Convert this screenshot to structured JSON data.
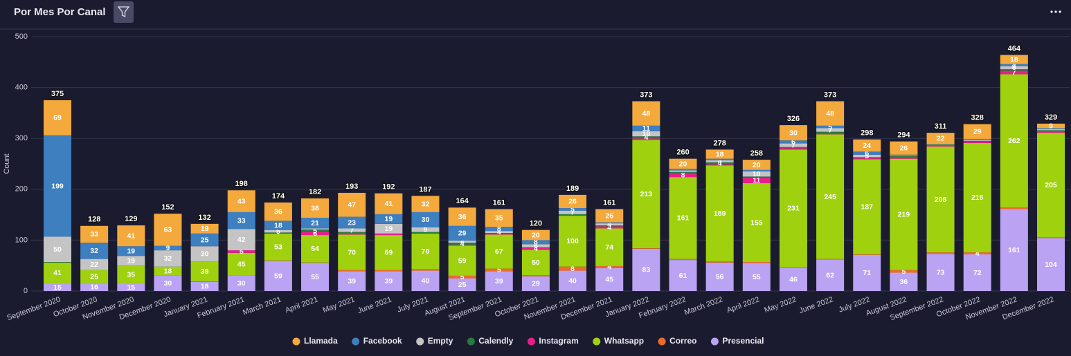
{
  "chart_data": {
    "type": "stacked_bar",
    "title": "Por Mes Por Canal",
    "y_label": "Count",
    "categories": [
      "September 2020",
      "October 2020",
      "November 2020",
      "December 2020",
      "January 2021",
      "February 2021",
      "March 2021",
      "April 2021",
      "May 2021",
      "June 2021",
      "July 2021",
      "August 2021",
      "September 2021",
      "October 2021",
      "November 2021",
      "December 2021",
      "January 2022",
      "February 2022",
      "March 2022",
      "April 2022",
      "May 2022",
      "June 2022",
      "July 2022",
      "August 2022",
      "September 2022",
      "October 2022",
      "November 2022",
      "December 2022"
    ],
    "series": [
      {
        "name": "Presencial",
        "color": "#b9a3f2",
        "values": [
          15,
          16,
          15,
          30,
          18,
          30,
          59,
          55,
          39,
          39,
          40,
          25,
          39,
          29,
          40,
          45,
          83,
          61,
          56,
          55,
          46,
          62,
          71,
          36,
          73,
          72,
          161,
          104
        ]
      },
      {
        "name": "Correo",
        "color": "#ee6a2a",
        "values": [
          0,
          0,
          0,
          0,
          1,
          0,
          1,
          1,
          2,
          2,
          3,
          5,
          5,
          2,
          8,
          4,
          1,
          2,
          2,
          2,
          1,
          1,
          1,
          5,
          3,
          4,
          3,
          2
        ]
      },
      {
        "name": "Whatsapp",
        "color": "#9fd10f",
        "values": [
          41,
          25,
          35,
          18,
          39,
          45,
          53,
          54,
          70,
          69,
          70,
          59,
          67,
          50,
          100,
          74,
          213,
          161,
          189,
          155,
          231,
          245,
          187,
          219,
          208,
          215,
          262,
          205
        ]
      },
      {
        "name": "Instagram",
        "color": "#e91e8c",
        "values": [
          0,
          0,
          0,
          0,
          0,
          5,
          0,
          6,
          3,
          3,
          1,
          2,
          2,
          4,
          1,
          4,
          3,
          8,
          2,
          11,
          3,
          2,
          2,
          3,
          3,
          3,
          7,
          3
        ]
      },
      {
        "name": "Calendly",
        "color": "#2a7a3e",
        "values": [
          1,
          0,
          0,
          0,
          0,
          0,
          2,
          5,
          2,
          0,
          2,
          4,
          1,
          1,
          2,
          2,
          4,
          2,
          4,
          2,
          2,
          3,
          2,
          2,
          1,
          1,
          3,
          2
        ]
      },
      {
        "name": "Empty",
        "color": "#c4c4c4",
        "values": [
          50,
          22,
          19,
          32,
          30,
          42,
          5,
          2,
          7,
          19,
          9,
          4,
          4,
          6,
          7,
          4,
          10,
          3,
          4,
          10,
          7,
          7,
          5,
          1,
          1,
          2,
          6,
          2
        ]
      },
      {
        "name": "Facebook",
        "color": "#3d7fbf",
        "values": [
          199,
          32,
          19,
          9,
          25,
          33,
          18,
          21,
          23,
          19,
          30,
          29,
          8,
          8,
          5,
          2,
          11,
          3,
          3,
          3,
          6,
          5,
          6,
          2,
          0,
          2,
          4,
          2
        ]
      },
      {
        "name": "Llamada",
        "color": "#f4a93c",
        "values": [
          69,
          33,
          41,
          63,
          19,
          43,
          36,
          38,
          47,
          41,
          32,
          36,
          35,
          20,
          26,
          26,
          48,
          20,
          18,
          20,
          30,
          48,
          24,
          26,
          22,
          29,
          18,
          9
        ]
      }
    ],
    "totals": [
      375,
      128,
      129,
      152,
      132,
      198,
      174,
      182,
      193,
      192,
      187,
      164,
      161,
      120,
      189,
      161,
      373,
      260,
      278,
      258,
      326,
      373,
      298,
      294,
      311,
      328,
      464,
      329
    ],
    "ylim": [
      0,
      500
    ],
    "yticks": [
      0,
      100,
      200,
      300,
      400,
      500
    ],
    "grid": true,
    "legend": "bottom"
  }
}
